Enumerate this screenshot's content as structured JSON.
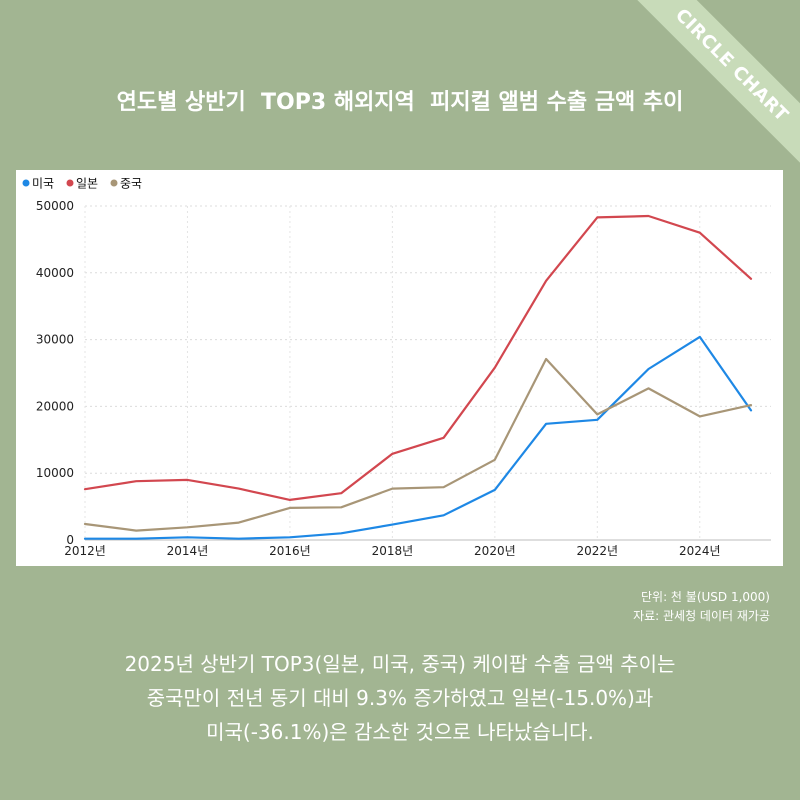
{
  "ribbon": "CIRCLE CHART",
  "title": "연도별 상반기  TOP3 해외지역  피지컬 앨범 수출 금액 추이",
  "source": {
    "unit": "단위: 천 불(USD 1,000)",
    "origin": "자료: 관세청 데이터 재가공"
  },
  "summary": [
    "2025년 상반기 TOP3(일본, 미국, 중국) 케이팝 수출 금액 추이는",
    "중국만이 전년 동기 대비 9.3% 증가하였고 일본(-15.0%)과",
    "미국(-36.1%)은 감소한 것으로 나타났습니다."
  ],
  "chart_data": {
    "type": "line",
    "x": [
      2012,
      2013,
      2014,
      2015,
      2016,
      2017,
      2018,
      2019,
      2020,
      2021,
      2022,
      2023,
      2024,
      2025
    ],
    "x_tick_labels": [
      "2012년",
      "2014년",
      "2016년",
      "2018년",
      "2020년",
      "2022년",
      "2024년"
    ],
    "x_tick_values": [
      2012,
      2014,
      2016,
      2018,
      2020,
      2022,
      2024
    ],
    "ylim": [
      0,
      50000
    ],
    "y_ticks": [
      0,
      10000,
      20000,
      30000,
      40000,
      50000
    ],
    "grid": true,
    "legend_position": "top-left",
    "series": [
      {
        "name": "미국",
        "color": "#1e88e5",
        "values": [
          200,
          200,
          400,
          200,
          400,
          1000,
          2300,
          3700,
          7500,
          17400,
          18000,
          25600,
          30400,
          19400
        ]
      },
      {
        "name": "일본",
        "color": "#d2474f",
        "values": [
          7600,
          8800,
          9000,
          7700,
          6000,
          7000,
          12900,
          15300,
          25800,
          38800,
          48300,
          48500,
          46000,
          39100
        ]
      },
      {
        "name": "중국",
        "color": "#a89677",
        "values": [
          2400,
          1400,
          1900,
          2600,
          4800,
          4900,
          7700,
          7900,
          12000,
          27100,
          18800,
          22700,
          18500,
          20200
        ]
      }
    ]
  }
}
